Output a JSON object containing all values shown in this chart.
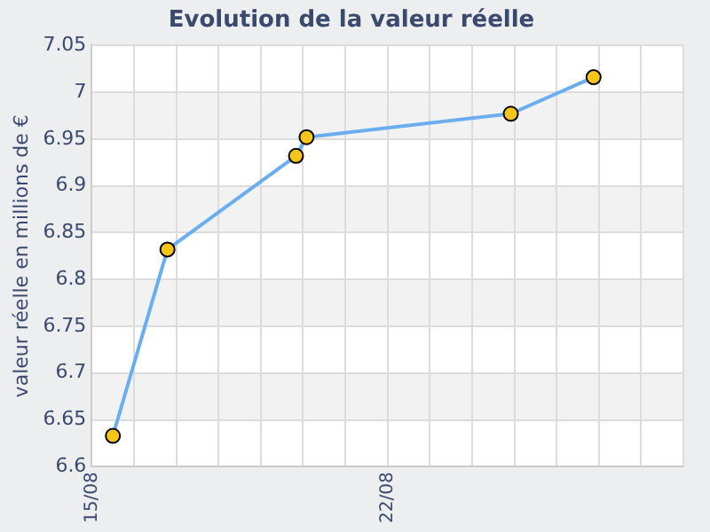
{
  "chart_data": {
    "type": "line",
    "title": "Evolution de la valeur réelle",
    "ylabel": "valeur réelle en millions de €",
    "x": [
      "--08-15T12:00",
      "--08-16T19:00",
      "--08-19T20:00",
      "--08-20T02:00",
      "--08-24T22:00",
      "--08-26T21:00"
    ],
    "series": [
      {
        "color": "#6aaef0",
        "values": [
          6.633,
          6.832,
          6.932,
          6.952,
          6.977,
          7.016
        ]
      }
    ],
    "xlim": [
      "--08-15",
      "--08-29"
    ],
    "xticks": [
      {
        "value": "--08-15",
        "label": "15/08"
      },
      {
        "value": "--08-16",
        "label": null
      },
      {
        "value": "--08-17",
        "label": null
      },
      {
        "value": "--08-18",
        "label": null
      },
      {
        "value": "--08-19",
        "label": null
      },
      {
        "value": "--08-20",
        "label": null
      },
      {
        "value": "--08-21",
        "label": null
      },
      {
        "value": "--08-22",
        "label": "22/08"
      },
      {
        "value": "--08-23",
        "label": null
      },
      {
        "value": "--08-24",
        "label": null
      },
      {
        "value": "--08-25",
        "label": null
      },
      {
        "value": "--08-26",
        "label": null
      },
      {
        "value": "--08-27",
        "label": null
      },
      {
        "value": "--08-28",
        "label": null
      },
      {
        "value": "--08-29",
        "label": null
      }
    ],
    "ylim": [
      6.6,
      7.05
    ],
    "yticks": [
      6.6,
      6.65,
      6.7,
      6.75,
      6.8,
      6.85,
      6.9,
      6.95,
      7,
      7.05
    ],
    "grid": true,
    "legend": false,
    "marker": "circle",
    "line_style": "solid"
  }
}
